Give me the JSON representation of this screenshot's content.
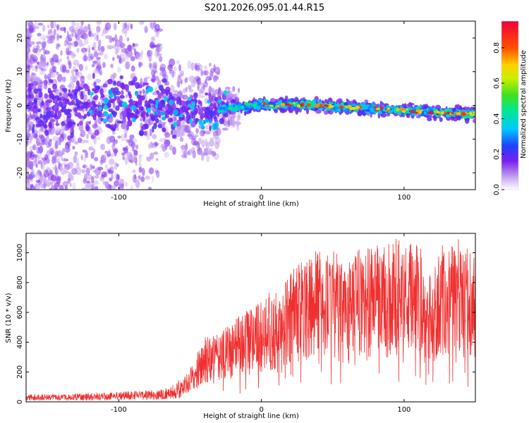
{
  "title": "S201.2026.095.01.44.R15",
  "chart_data": [
    {
      "type": "heatmap",
      "title": "",
      "xlabel": "Height of straight line (km)",
      "ylabel": "Frequency (Hz)",
      "xlim": [
        -165,
        150
      ],
      "ylim": [
        -25,
        25
      ],
      "xticks": [
        -100,
        0,
        100
      ],
      "yticks": [
        -20,
        -10,
        0,
        10,
        20
      ],
      "colorbar": {
        "label": "Normalized spectral amplitude",
        "range": [
          0.0,
          0.95
        ],
        "ticks": [
          "0.0",
          "0.2",
          "0.4",
          "0.6",
          "0.8"
        ],
        "tick_values": [
          0.0,
          0.2,
          0.4,
          0.6,
          0.8
        ]
      },
      "ridge": {
        "x": [
          -160,
          -140,
          -120,
          -100,
          -80,
          -60,
          -40,
          -30,
          -20,
          -10,
          0,
          10,
          20,
          40,
          60,
          80,
          100,
          120,
          140,
          150
        ],
        "y": [
          -0.5,
          -1,
          0,
          0,
          0,
          -1,
          -2,
          -1.5,
          -0.5,
          -0.5,
          0.5,
          0,
          0.3,
          0,
          -0.5,
          -1,
          -1.5,
          -2,
          -2.5,
          -2.5
        ]
      }
    },
    {
      "type": "line",
      "title": "",
      "xlabel": "Height of straight line (km)",
      "ylabel": "SNR (10 * v/v)",
      "xlim": [
        -165,
        150
      ],
      "ylim": [
        0,
        1130
      ],
      "xticks": [
        -100,
        0,
        100
      ],
      "yticks": [
        0,
        200,
        400,
        600,
        800,
        1000
      ],
      "series": [
        {
          "name": "SNR",
          "color": "#f03030",
          "x": [
            -165,
            -140,
            -120,
            -100,
            -80,
            -70,
            -60,
            -52,
            -45,
            -40,
            -30,
            -20,
            -10,
            0,
            10,
            20,
            30,
            40,
            50,
            60,
            70,
            80,
            90,
            100,
            110,
            115,
            120,
            130,
            140,
            150
          ],
          "y": [
            30,
            30,
            35,
            40,
            45,
            50,
            70,
            130,
            210,
            260,
            300,
            350,
            400,
            430,
            480,
            560,
            620,
            650,
            660,
            650,
            660,
            680,
            700,
            720,
            700,
            500,
            600,
            680,
            680,
            660
          ]
        }
      ]
    }
  ]
}
